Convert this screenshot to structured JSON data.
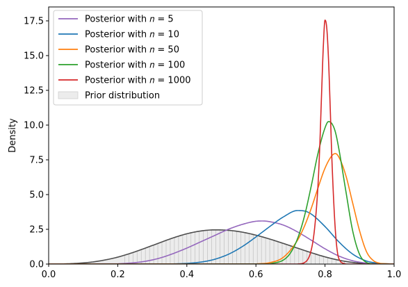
{
  "chart_data": {
    "type": "line",
    "title": "",
    "xlabel": "",
    "ylabel": "Density",
    "xlim": [
      0.0,
      1.0
    ],
    "ylim": [
      0.0,
      18.5
    ],
    "grid": false,
    "legend_position": "top-left",
    "x_ticks": [
      "0.0",
      "0.2",
      "0.4",
      "0.6",
      "0.8",
      "1.0"
    ],
    "y_ticks": [
      "0.0",
      "2.5",
      "5.0",
      "7.5",
      "10.0",
      "12.5",
      "15.0",
      "17.5"
    ],
    "prior": {
      "name": "Prior distribution",
      "color": "#4d4d4d",
      "fill": "#ececec",
      "x": [
        0.0,
        0.04,
        0.08,
        0.12,
        0.16,
        0.2,
        0.24,
        0.28,
        0.32,
        0.36,
        0.4,
        0.44,
        0.48,
        0.52,
        0.56,
        0.6,
        0.64,
        0.68,
        0.72,
        0.76,
        0.8,
        0.84,
        0.88,
        0.92,
        0.96,
        1.0
      ],
      "y": [
        0.0,
        0.01,
        0.05,
        0.13,
        0.28,
        0.5,
        0.8,
        1.15,
        1.52,
        1.88,
        2.18,
        2.38,
        2.46,
        2.43,
        2.3,
        2.08,
        1.8,
        1.48,
        1.15,
        0.82,
        0.52,
        0.28,
        0.12,
        0.04,
        0.01,
        0.0
      ]
    },
    "series": [
      {
        "name": "Posterior with n = 5",
        "legend_label": "Posterior with 𝑛 = 5",
        "color": "#9467bd",
        "x": [
          0.2,
          0.24,
          0.28,
          0.32,
          0.36,
          0.4,
          0.44,
          0.48,
          0.52,
          0.56,
          0.6,
          0.62,
          0.64,
          0.68,
          0.72,
          0.76,
          0.8,
          0.84,
          0.88,
          0.92,
          0.96
        ],
        "y": [
          0.02,
          0.08,
          0.2,
          0.42,
          0.75,
          1.15,
          1.6,
          2.05,
          2.5,
          2.85,
          3.08,
          3.1,
          3.05,
          2.8,
          2.32,
          1.72,
          1.1,
          0.58,
          0.24,
          0.07,
          0.01
        ]
      },
      {
        "name": "Posterior with n = 10",
        "legend_label": "Posterior with 𝑛 = 10",
        "color": "#1f77b4",
        "x": [
          0.36,
          0.4,
          0.44,
          0.48,
          0.52,
          0.56,
          0.6,
          0.64,
          0.68,
          0.72,
          0.74,
          0.76,
          0.8,
          0.84,
          0.88,
          0.92,
          0.96
        ],
        "y": [
          0.01,
          0.05,
          0.14,
          0.34,
          0.7,
          1.25,
          1.95,
          2.7,
          3.4,
          3.85,
          3.82,
          3.6,
          2.7,
          1.6,
          0.72,
          0.22,
          0.04
        ]
      },
      {
        "name": "Posterior with n = 50",
        "legend_label": "Posterior with 𝑛 = 50",
        "color": "#ff7f0e",
        "x": [
          0.6,
          0.64,
          0.68,
          0.72,
          0.74,
          0.76,
          0.78,
          0.8,
          0.82,
          0.83,
          0.84,
          0.86,
          0.88,
          0.9,
          0.92,
          0.94,
          0.96
        ],
        "y": [
          0.01,
          0.1,
          0.5,
          1.7,
          2.7,
          4.0,
          5.5,
          6.9,
          7.8,
          7.95,
          7.7,
          6.4,
          4.4,
          2.4,
          0.9,
          0.25,
          0.04
        ]
      },
      {
        "name": "Posterior with n = 100",
        "legend_label": "Posterior with 𝑛 = 100",
        "color": "#2ca02c",
        "x": [
          0.64,
          0.68,
          0.7,
          0.72,
          0.74,
          0.76,
          0.78,
          0.8,
          0.81,
          0.82,
          0.83,
          0.84,
          0.86,
          0.88,
          0.9,
          0.92,
          0.94
        ],
        "y": [
          0.01,
          0.3,
          0.8,
          1.8,
          3.4,
          5.6,
          8.0,
          9.8,
          10.25,
          10.1,
          9.5,
          8.3,
          5.3,
          2.4,
          0.7,
          0.12,
          0.01
        ]
      },
      {
        "name": "Posterior with n = 1000",
        "legend_label": "Posterior with 𝑛 = 1000",
        "color": "#d62728",
        "x": [
          0.72,
          0.74,
          0.76,
          0.77,
          0.78,
          0.785,
          0.79,
          0.795,
          0.8,
          0.805,
          0.81,
          0.815,
          0.82,
          0.83,
          0.84,
          0.86
        ],
        "y": [
          0.0,
          0.1,
          1.0,
          2.6,
          5.8,
          8.6,
          12.2,
          15.6,
          17.55,
          17.0,
          14.8,
          11.3,
          7.5,
          2.4,
          0.4,
          0.0
        ]
      }
    ]
  }
}
